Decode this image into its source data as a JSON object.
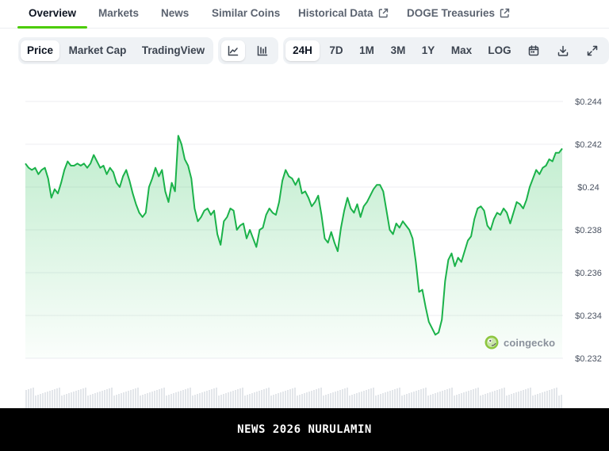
{
  "tabs": [
    {
      "label": "Overview",
      "active": true
    },
    {
      "label": "Markets"
    },
    {
      "label": "News"
    },
    {
      "label": "Similar Coins"
    },
    {
      "label": "Historical Data",
      "external": true
    },
    {
      "label": "DOGE Treasuries",
      "external": true
    }
  ],
  "toolbar": {
    "chart_types": [
      "Price",
      "Market Cap",
      "TradingView"
    ],
    "active_chart_type": "Price",
    "view_icons": [
      "line-chart-icon",
      "candlestick-chart-icon"
    ],
    "active_view": "line-chart-icon",
    "ranges": [
      "24H",
      "7D",
      "1M",
      "3M",
      "1Y",
      "Max",
      "LOG"
    ],
    "active_range": "24H",
    "tool_icons": [
      "calendar-icon",
      "download-icon",
      "expand-icon"
    ]
  },
  "watermark": {
    "text": "coingecko",
    "icon": "gecko-logo-icon"
  },
  "banner": {
    "text": "NEWS 2026 NURULAMIN"
  },
  "colors": {
    "accent": "#4bcc00",
    "line": "#1bb24a",
    "grid": "#eceef1"
  },
  "chart_data": {
    "type": "area",
    "title": "",
    "xlabel": "",
    "ylabel": "",
    "ylim": [
      0.231,
      0.2448
    ],
    "yticks": [
      "$0.244",
      "$0.242",
      "$0.24",
      "$0.238",
      "$0.236",
      "$0.234",
      "$0.232"
    ],
    "ytick_values": [
      0.244,
      0.242,
      0.24,
      0.238,
      0.236,
      0.234,
      0.232
    ],
    "grid": true,
    "series": [
      {
        "values": [
          0.2411,
          0.2409,
          0.2408,
          0.2409,
          0.2406,
          0.2408,
          0.2409,
          0.2404,
          0.2395,
          0.2399,
          0.2397,
          0.2402,
          0.2408,
          0.2412,
          0.241,
          0.241,
          0.2411,
          0.241,
          0.2411,
          0.2409,
          0.2411,
          0.2415,
          0.2412,
          0.2409,
          0.241,
          0.2406,
          0.2409,
          0.2407,
          0.2402,
          0.24,
          0.2405,
          0.2408,
          0.2403,
          0.2397,
          0.2392,
          0.2388,
          0.2386,
          0.2388,
          0.24,
          0.2404,
          0.2409,
          0.2405,
          0.2408,
          0.2398,
          0.2393,
          0.2402,
          0.2398,
          0.2424,
          0.242,
          0.2413,
          0.241,
          0.2404,
          0.239,
          0.2384,
          0.2386,
          0.2389,
          0.239,
          0.2387,
          0.2389,
          0.2378,
          0.2373,
          0.2384,
          0.2386,
          0.239,
          0.2389,
          0.238,
          0.2382,
          0.2383,
          0.2376,
          0.238,
          0.2376,
          0.2372,
          0.238,
          0.2381,
          0.2387,
          0.239,
          0.2388,
          0.2387,
          0.2393,
          0.2403,
          0.2408,
          0.2405,
          0.2404,
          0.2401,
          0.2404,
          0.2397,
          0.2398,
          0.2395,
          0.2391,
          0.2393,
          0.2396,
          0.2387,
          0.2376,
          0.2374,
          0.2379,
          0.2374,
          0.237,
          0.2381,
          0.2389,
          0.2395,
          0.239,
          0.2388,
          0.2392,
          0.2386,
          0.2391,
          0.2393,
          0.2396,
          0.2399,
          0.2401,
          0.2401,
          0.2398,
          0.2389,
          0.238,
          0.2378,
          0.2383,
          0.2381,
          0.2384,
          0.2382,
          0.238,
          0.2376,
          0.2365,
          0.2351,
          0.2352,
          0.2344,
          0.2337,
          0.2334,
          0.2331,
          0.2332,
          0.2338,
          0.2356,
          0.2366,
          0.2369,
          0.2363,
          0.2367,
          0.2365,
          0.237,
          0.2375,
          0.2377,
          0.2385,
          0.239,
          0.2391,
          0.2389,
          0.2382,
          0.238,
          0.2385,
          0.2388,
          0.2387,
          0.239,
          0.2388,
          0.2383,
          0.2388,
          0.2393,
          0.2392,
          0.239,
          0.2394,
          0.24,
          0.2404,
          0.2408,
          0.2406,
          0.2409,
          0.241,
          0.2413,
          0.2412,
          0.2416,
          0.2416,
          0.2418
        ]
      }
    ]
  }
}
